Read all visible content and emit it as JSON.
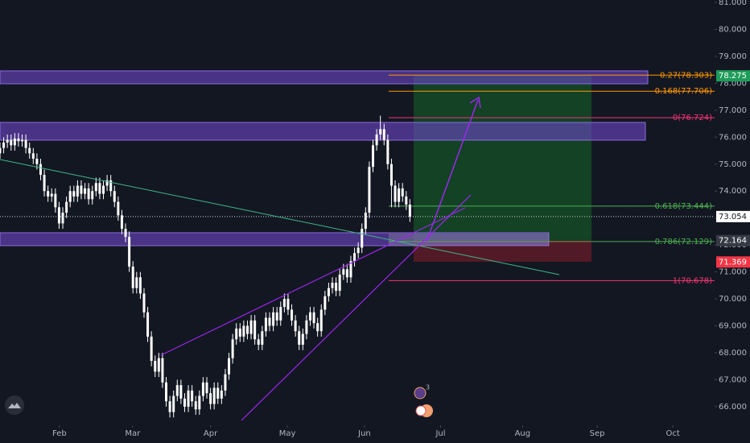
{
  "chart_data": {
    "type": "candlestick",
    "color": "#ffffff",
    "x": [
      0,
      1,
      2,
      3,
      4,
      5,
      6,
      7,
      8,
      9,
      10,
      11,
      12,
      13,
      14,
      15,
      16,
      17,
      18,
      19,
      20,
      21,
      22,
      23,
      24,
      25,
      26,
      27,
      28,
      29,
      30,
      31,
      32,
      33,
      34,
      35,
      36,
      37,
      38,
      39,
      40,
      41,
      42,
      43,
      44,
      45,
      46,
      47,
      48,
      49,
      50,
      51,
      52,
      53,
      54,
      55,
      56,
      57,
      58,
      59,
      60,
      61,
      62,
      63,
      64,
      65,
      66,
      67,
      68,
      69,
      70,
      71,
      72,
      73,
      74,
      75,
      76,
      77,
      78,
      79,
      80,
      81,
      82,
      83,
      84,
      85,
      86,
      87,
      88,
      89,
      90,
      91,
      92,
      93,
      94,
      95,
      96,
      97,
      98,
      99,
      100,
      101,
      102,
      103,
      104,
      105,
      106,
      107,
      108,
      109,
      110,
      111
    ],
    "open": [
      75.4,
      75.6,
      75.8,
      75.9,
      75.7,
      75.95,
      75.85,
      75.9,
      75.6,
      75.4,
      75.2,
      75.0,
      74.6,
      74.0,
      73.8,
      73.9,
      73.4,
      72.8,
      73.2,
      73.6,
      74.0,
      73.8,
      74.2,
      73.9,
      74.1,
      73.7,
      74.0,
      74.3,
      73.9,
      74.2,
      74.4,
      74.0,
      73.6,
      73.1,
      72.6,
      72.3,
      71.2,
      70.4,
      70.8,
      70.2,
      69.5,
      68.6,
      67.7,
      67.3,
      67.8,
      66.9,
      66.2,
      65.8,
      66.4,
      66.8,
      66.3,
      66.0,
      66.6,
      66.2,
      65.9,
      66.4,
      66.9,
      66.5,
      66.1,
      66.7,
      66.3,
      66.6,
      67.2,
      67.8,
      68.5,
      68.9,
      68.6,
      69.0,
      68.7,
      69.2,
      68.5,
      68.3,
      68.8,
      69.3,
      69.0,
      69.5,
      69.2,
      69.7,
      70.0,
      69.6,
      69.2,
      68.8,
      68.3,
      68.7,
      69.2,
      69.5,
      69.1,
      68.8,
      69.6,
      70.1,
      70.4,
      70.6,
      70.3,
      70.9,
      71.1,
      70.8,
      71.4,
      71.7,
      71.9,
      72.6,
      73.2,
      74.9,
      75.7,
      76.1,
      76.3,
      75.9,
      75.0,
      74.2,
      73.6,
      74.1,
      73.8,
      73.5
    ],
    "high": [
      75.8,
      76.0,
      76.1,
      76.1,
      76.15,
      76.15,
      76.1,
      76.1,
      75.8,
      75.6,
      75.4,
      75.2,
      74.8,
      74.2,
      74.1,
      74.1,
      73.6,
      73.4,
      73.8,
      74.2,
      74.2,
      74.4,
      74.4,
      74.3,
      74.3,
      74.2,
      74.5,
      74.5,
      74.4,
      74.6,
      74.6,
      74.2,
      73.8,
      73.3,
      72.8,
      72.5,
      71.4,
      71.0,
      71.0,
      70.4,
      69.7,
      68.8,
      67.9,
      68.0,
      68.0,
      67.1,
      66.4,
      66.6,
      67.0,
      67.0,
      66.5,
      66.8,
      66.8,
      66.4,
      66.6,
      67.1,
      67.1,
      66.7,
      66.9,
      66.9,
      66.8,
      67.4,
      68.0,
      68.7,
      69.1,
      69.1,
      69.2,
      69.2,
      69.4,
      69.4,
      68.7,
      69.0,
      69.5,
      69.5,
      69.7,
      69.7,
      69.9,
      70.2,
      70.2,
      69.8,
      69.4,
      69.0,
      68.9,
      69.4,
      69.7,
      69.7,
      69.3,
      69.8,
      70.3,
      70.6,
      70.8,
      70.8,
      71.1,
      71.3,
      71.3,
      71.6,
      71.9,
      72.1,
      72.8,
      73.4,
      75.1,
      75.9,
      76.3,
      76.8,
      76.5,
      76.1,
      75.2,
      74.4,
      74.3,
      74.3,
      74.0,
      73.7
    ],
    "low": [
      75.2,
      75.4,
      75.6,
      75.5,
      75.5,
      75.65,
      75.65,
      75.4,
      75.2,
      75.0,
      74.8,
      74.4,
      73.8,
      73.6,
      73.6,
      73.2,
      72.6,
      72.6,
      73.0,
      73.4,
      73.6,
      73.6,
      73.7,
      73.7,
      73.5,
      73.5,
      73.8,
      73.7,
      73.7,
      74.0,
      73.8,
      73.4,
      72.9,
      72.4,
      72.1,
      71.0,
      70.2,
      70.2,
      70.0,
      69.3,
      68.4,
      67.5,
      67.1,
      67.1,
      66.7,
      66.0,
      65.6,
      65.6,
      66.2,
      66.1,
      65.8,
      65.8,
      66.0,
      65.7,
      65.7,
      66.2,
      66.3,
      65.9,
      65.9,
      66.1,
      66.1,
      66.4,
      67.0,
      67.6,
      68.3,
      68.4,
      68.4,
      68.5,
      68.5,
      68.3,
      68.1,
      68.1,
      68.6,
      68.8,
      68.8,
      69.0,
      69.0,
      69.5,
      69.4,
      69.0,
      68.6,
      68.1,
      68.1,
      68.5,
      69.0,
      68.9,
      68.6,
      68.6,
      69.4,
      69.9,
      70.2,
      70.1,
      70.1,
      70.7,
      70.6,
      70.6,
      71.2,
      71.5,
      71.7,
      72.4,
      73.0,
      74.7,
      75.5,
      75.9,
      75.7,
      74.8,
      73.4,
      73.4,
      73.4,
      73.6,
      73.3,
      72.854
    ],
    "close": [
      75.6,
      75.8,
      75.9,
      75.7,
      75.95,
      75.85,
      75.9,
      75.6,
      75.4,
      75.2,
      75.0,
      74.6,
      74.0,
      73.8,
      73.9,
      73.4,
      72.8,
      73.2,
      73.6,
      74.0,
      73.8,
      74.2,
      73.9,
      74.1,
      73.7,
      74.0,
      74.3,
      73.9,
      74.2,
      74.4,
      74.0,
      73.6,
      73.1,
      72.6,
      72.3,
      71.2,
      70.4,
      70.8,
      70.2,
      69.5,
      68.6,
      67.7,
      67.3,
      67.8,
      66.9,
      66.2,
      65.8,
      66.4,
      66.8,
      66.3,
      66.0,
      66.6,
      66.2,
      65.9,
      66.4,
      66.9,
      66.5,
      66.1,
      66.7,
      66.3,
      66.6,
      67.2,
      67.8,
      68.5,
      68.9,
      68.6,
      69.0,
      68.7,
      69.2,
      68.5,
      68.3,
      68.8,
      69.3,
      69.0,
      69.5,
      69.2,
      69.7,
      70.0,
      69.6,
      69.2,
      68.8,
      68.3,
      68.7,
      69.2,
      69.5,
      69.1,
      68.8,
      69.6,
      70.1,
      70.4,
      70.6,
      70.3,
      70.9,
      71.1,
      70.8,
      71.4,
      71.7,
      71.9,
      72.6,
      73.2,
      74.9,
      75.7,
      76.1,
      76.3,
      75.9,
      75.0,
      74.2,
      73.6,
      74.1,
      73.8,
      73.5,
      73.054
    ],
    "xlim": [
      0,
      193.5
    ],
    "xticks": [
      {
        "value": 16.1,
        "label": "Feb"
      },
      {
        "value": 35.9,
        "label": "Mar"
      },
      {
        "value": 57.0,
        "label": "Apr"
      },
      {
        "value": 77.8,
        "label": "May"
      },
      {
        "value": 98.7,
        "label": "Jun"
      },
      {
        "value": 119.3,
        "label": "Jul"
      },
      {
        "value": 141.5,
        "label": "Aug"
      },
      {
        "value": 161.7,
        "label": "Sep"
      },
      {
        "value": 182.2,
        "label": "Oct"
      }
    ],
    "ylim": [
      65.31,
      81.09
    ],
    "yticks": [
      {
        "value": 66,
        "label": "66.000"
      },
      {
        "value": 67,
        "label": "67.000"
      },
      {
        "value": 68,
        "label": "68.000"
      },
      {
        "value": 69,
        "label": "69.000"
      },
      {
        "value": 70,
        "label": "70.000"
      },
      {
        "value": 71,
        "label": "71.000"
      },
      {
        "value": 72,
        "label": "72.000"
      },
      {
        "value": 73,
        "label": "73.000"
      },
      {
        "value": 74,
        "label": "74.000"
      },
      {
        "value": 75,
        "label": "75.000"
      },
      {
        "value": 76,
        "label": "76.000"
      },
      {
        "value": 77,
        "label": "77.000"
      },
      {
        "value": 78,
        "label": "78.000"
      },
      {
        "value": 79,
        "label": "79.000"
      },
      {
        "value": 80,
        "label": "80.000"
      },
      {
        "value": 81,
        "label": "81.000"
      }
    ],
    "grid": false,
    "fib_levels": [
      {
        "value": 78.303,
        "label": "0.27(78.303)",
        "color": "#ff9800"
      },
      {
        "value": 77.706,
        "label": "0.168(77.706)",
        "color": "#ff9800"
      },
      {
        "value": 76.724,
        "label": "0(76.724)",
        "color": "#f23673"
      },
      {
        "value": 73.444,
        "label": "0.618(73.444)",
        "color": "#4caf50"
      },
      {
        "value": 72.129,
        "label": "0.786(72.129)",
        "color": "#4caf50"
      },
      {
        "value": 70.678,
        "label": "1(70.678)",
        "color": "#f23673"
      }
    ],
    "price_labels": [
      {
        "value": 78.275,
        "label": "78.275",
        "color": "#1e9c5a",
        "text_color": "#ffffff"
      },
      {
        "value": 73.054,
        "label": "73.054",
        "color": "#ffffff",
        "text_color": "#131722"
      },
      {
        "value": 72.164,
        "label": "72.164",
        "color": "#363a45",
        "text_color": "#ffffff"
      },
      {
        "value": 71.369,
        "label": "71.369",
        "color": "#f23645",
        "text_color": "#ffffff"
      }
    ],
    "event_badge": "3"
  }
}
